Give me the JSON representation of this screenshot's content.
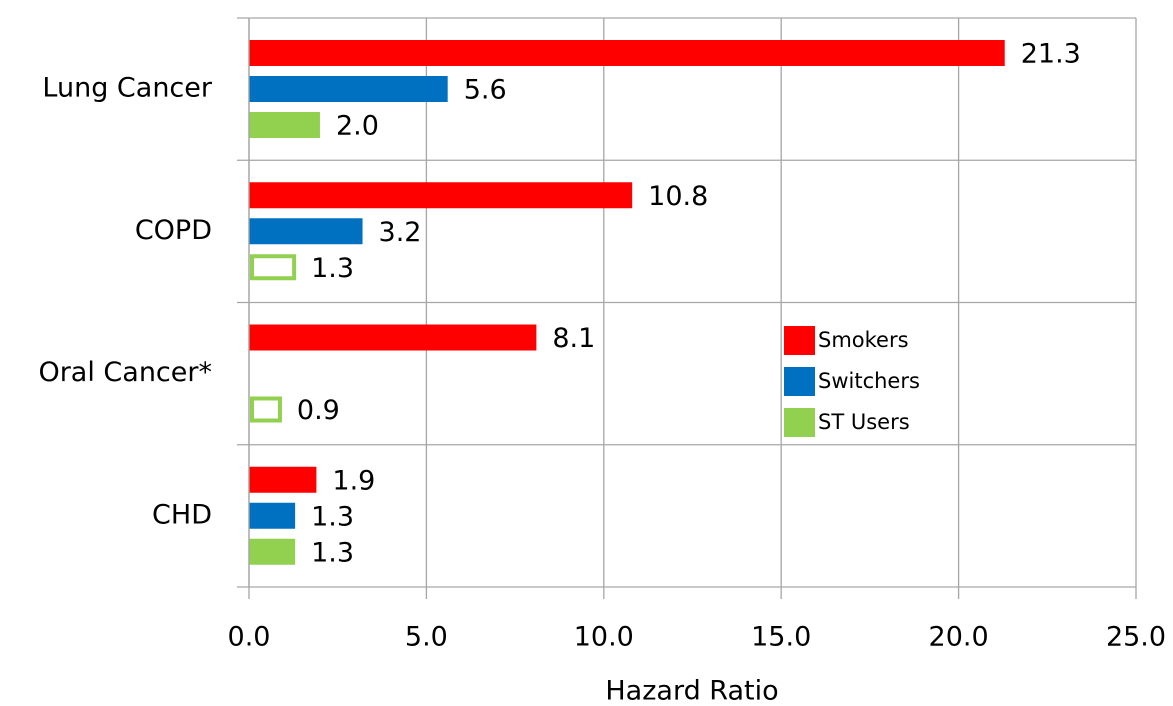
{
  "chart_data": {
    "type": "hbar",
    "xlabel": "Hazard Ratio",
    "categories": [
      "Lung Cancer",
      "COPD",
      "Oral Cancer*",
      "CHD"
    ],
    "series": [
      {
        "name": "Smokers",
        "color": "#ff0000",
        "values": [
          21.3,
          10.8,
          8.1,
          1.9
        ],
        "value_labels": [
          "21.3",
          "10.8",
          "8.1",
          "1.9"
        ]
      },
      {
        "name": "Switchers",
        "color": "#0070c0",
        "values": [
          5.6,
          3.2,
          null,
          1.3
        ],
        "value_labels": [
          "5.6",
          "3.2",
          null,
          "1.3"
        ]
      },
      {
        "name": "ST Users",
        "color": "#92d050",
        "values": [
          2.0,
          1.3,
          0.9,
          1.3
        ],
        "value_labels": [
          "2.0",
          "1.3",
          "0.9",
          "1.3"
        ],
        "outline": [
          false,
          true,
          true,
          false
        ]
      }
    ],
    "xlim": [
      0,
      25
    ],
    "xticks": [
      {
        "value": 0,
        "label": "0.0"
      },
      {
        "value": 5,
        "label": "5.0"
      },
      {
        "value": 10,
        "label": "10.0"
      },
      {
        "value": 15,
        "label": "15.0"
      },
      {
        "value": 20,
        "label": "20.0"
      },
      {
        "value": 25,
        "label": "25.0"
      }
    ],
    "grid": true
  }
}
